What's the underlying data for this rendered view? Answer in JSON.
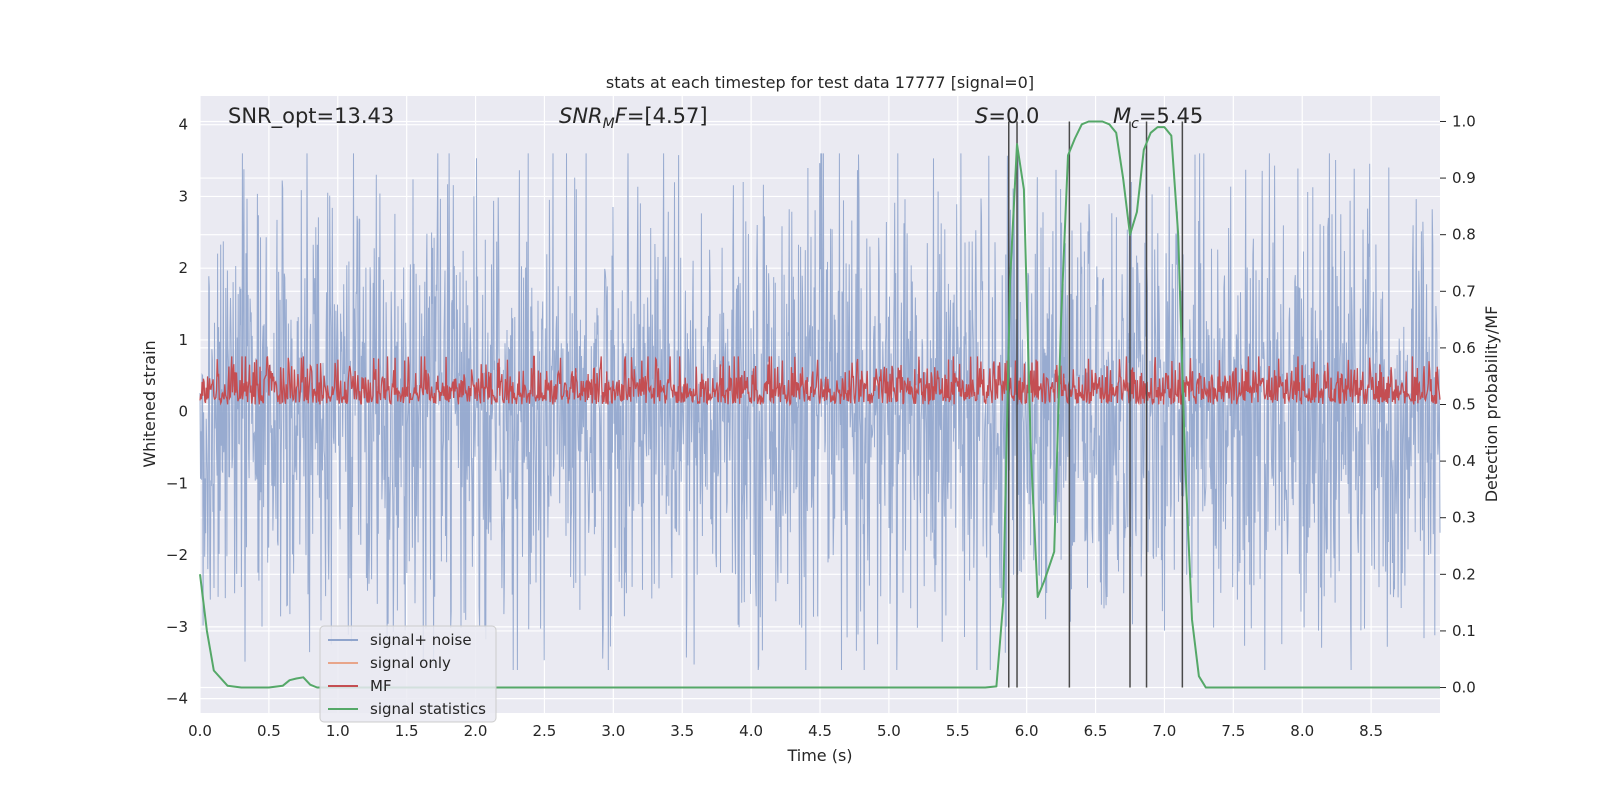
{
  "chart_data": {
    "type": "line",
    "title": "stats at each timestep for test data 17777 [signal=0]",
    "xlabel": "Time (s)",
    "ylabel": "Whitened strain",
    "y2label": "Detection probability/MF",
    "xlim": [
      0.0,
      9.0
    ],
    "ylim": [
      -4.2,
      4.4
    ],
    "y2lim": [
      -0.045,
      1.045
    ],
    "xticks": [
      "0.0",
      "0.5",
      "1.0",
      "1.5",
      "2.0",
      "2.5",
      "3.0",
      "3.5",
      "4.0",
      "4.5",
      "5.0",
      "5.5",
      "6.0",
      "6.5",
      "7.0",
      "7.5",
      "8.0",
      "8.5"
    ],
    "yticks": [
      "4",
      "3",
      "2",
      "1",
      "0",
      "−1",
      "−2",
      "−3",
      "−4"
    ],
    "y2ticks": [
      "1.0",
      "0.9",
      "0.8",
      "0.7",
      "0.6",
      "0.5",
      "0.4",
      "0.3",
      "0.2",
      "0.1",
      "0.0"
    ],
    "annotations": {
      "snr_opt": "SNR_opt=13.43",
      "snr_mf_prefix": "SNR",
      "snr_mf_sub": "M",
      "snr_mf_mid": "F",
      "snr_mf_value": "=[4.57]",
      "s_symbol": "S",
      "s_value": "=0.0",
      "mc_symbol": "M",
      "mc_sub": "c",
      "mc_value": "=5.45"
    },
    "legend": {
      "position": "lower-left",
      "entries": [
        {
          "name": "signal+ noise",
          "color": "#8fa4cc"
        },
        {
          "name": "signal only",
          "color": "#e8a58a"
        },
        {
          "name": "MF",
          "color": "#c44e52"
        },
        {
          "name": "signal statistics",
          "color": "#55a868"
        }
      ]
    },
    "series": [
      {
        "name": "signal+ noise",
        "description": "Whitened strain noise, amplitude envelope roughly ±2 with spikes to ±3.5",
        "envelope_typical": 2.0,
        "envelope_peak": 3.6
      },
      {
        "name": "MF",
        "axis": "right",
        "description": "Matched-filter output on right axis, ~0.5–0.6",
        "range": [
          0.5,
          0.6
        ]
      },
      {
        "name": "signal statistics",
        "axis": "right",
        "x": [
          0.0,
          0.05,
          0.1,
          0.2,
          0.3,
          0.5,
          0.6,
          0.65,
          0.7,
          0.75,
          0.8,
          0.85,
          1.0,
          2.0,
          3.0,
          4.0,
          5.0,
          5.7,
          5.78,
          5.83,
          5.88,
          5.93,
          5.98,
          6.03,
          6.08,
          6.13,
          6.2,
          6.25,
          6.3,
          6.35,
          6.4,
          6.45,
          6.5,
          6.55,
          6.6,
          6.65,
          6.7,
          6.75,
          6.8,
          6.85,
          6.9,
          6.95,
          7.0,
          7.05,
          7.1,
          7.15,
          7.2,
          7.25,
          7.3,
          7.4,
          7.6,
          8.0,
          9.0
        ],
        "values": [
          0.2,
          0.1,
          0.03,
          0.003,
          0.0,
          0.0,
          0.003,
          0.013,
          0.016,
          0.018,
          0.005,
          0.0,
          0.0,
          0.0,
          0.0,
          0.0,
          0.0,
          0.0,
          0.002,
          0.15,
          0.72,
          0.96,
          0.88,
          0.42,
          0.16,
          0.19,
          0.24,
          0.65,
          0.94,
          0.97,
          0.995,
          1.0,
          1.0,
          1.0,
          0.995,
          0.98,
          0.9,
          0.8,
          0.84,
          0.95,
          0.98,
          0.99,
          0.99,
          0.975,
          0.8,
          0.4,
          0.12,
          0.02,
          0.0,
          0.0,
          0.0,
          0.0,
          0.0
        ]
      }
    ],
    "vertical_lines": [
      5.87,
      5.93,
      6.31,
      6.75,
      6.87,
      7.13
    ]
  }
}
